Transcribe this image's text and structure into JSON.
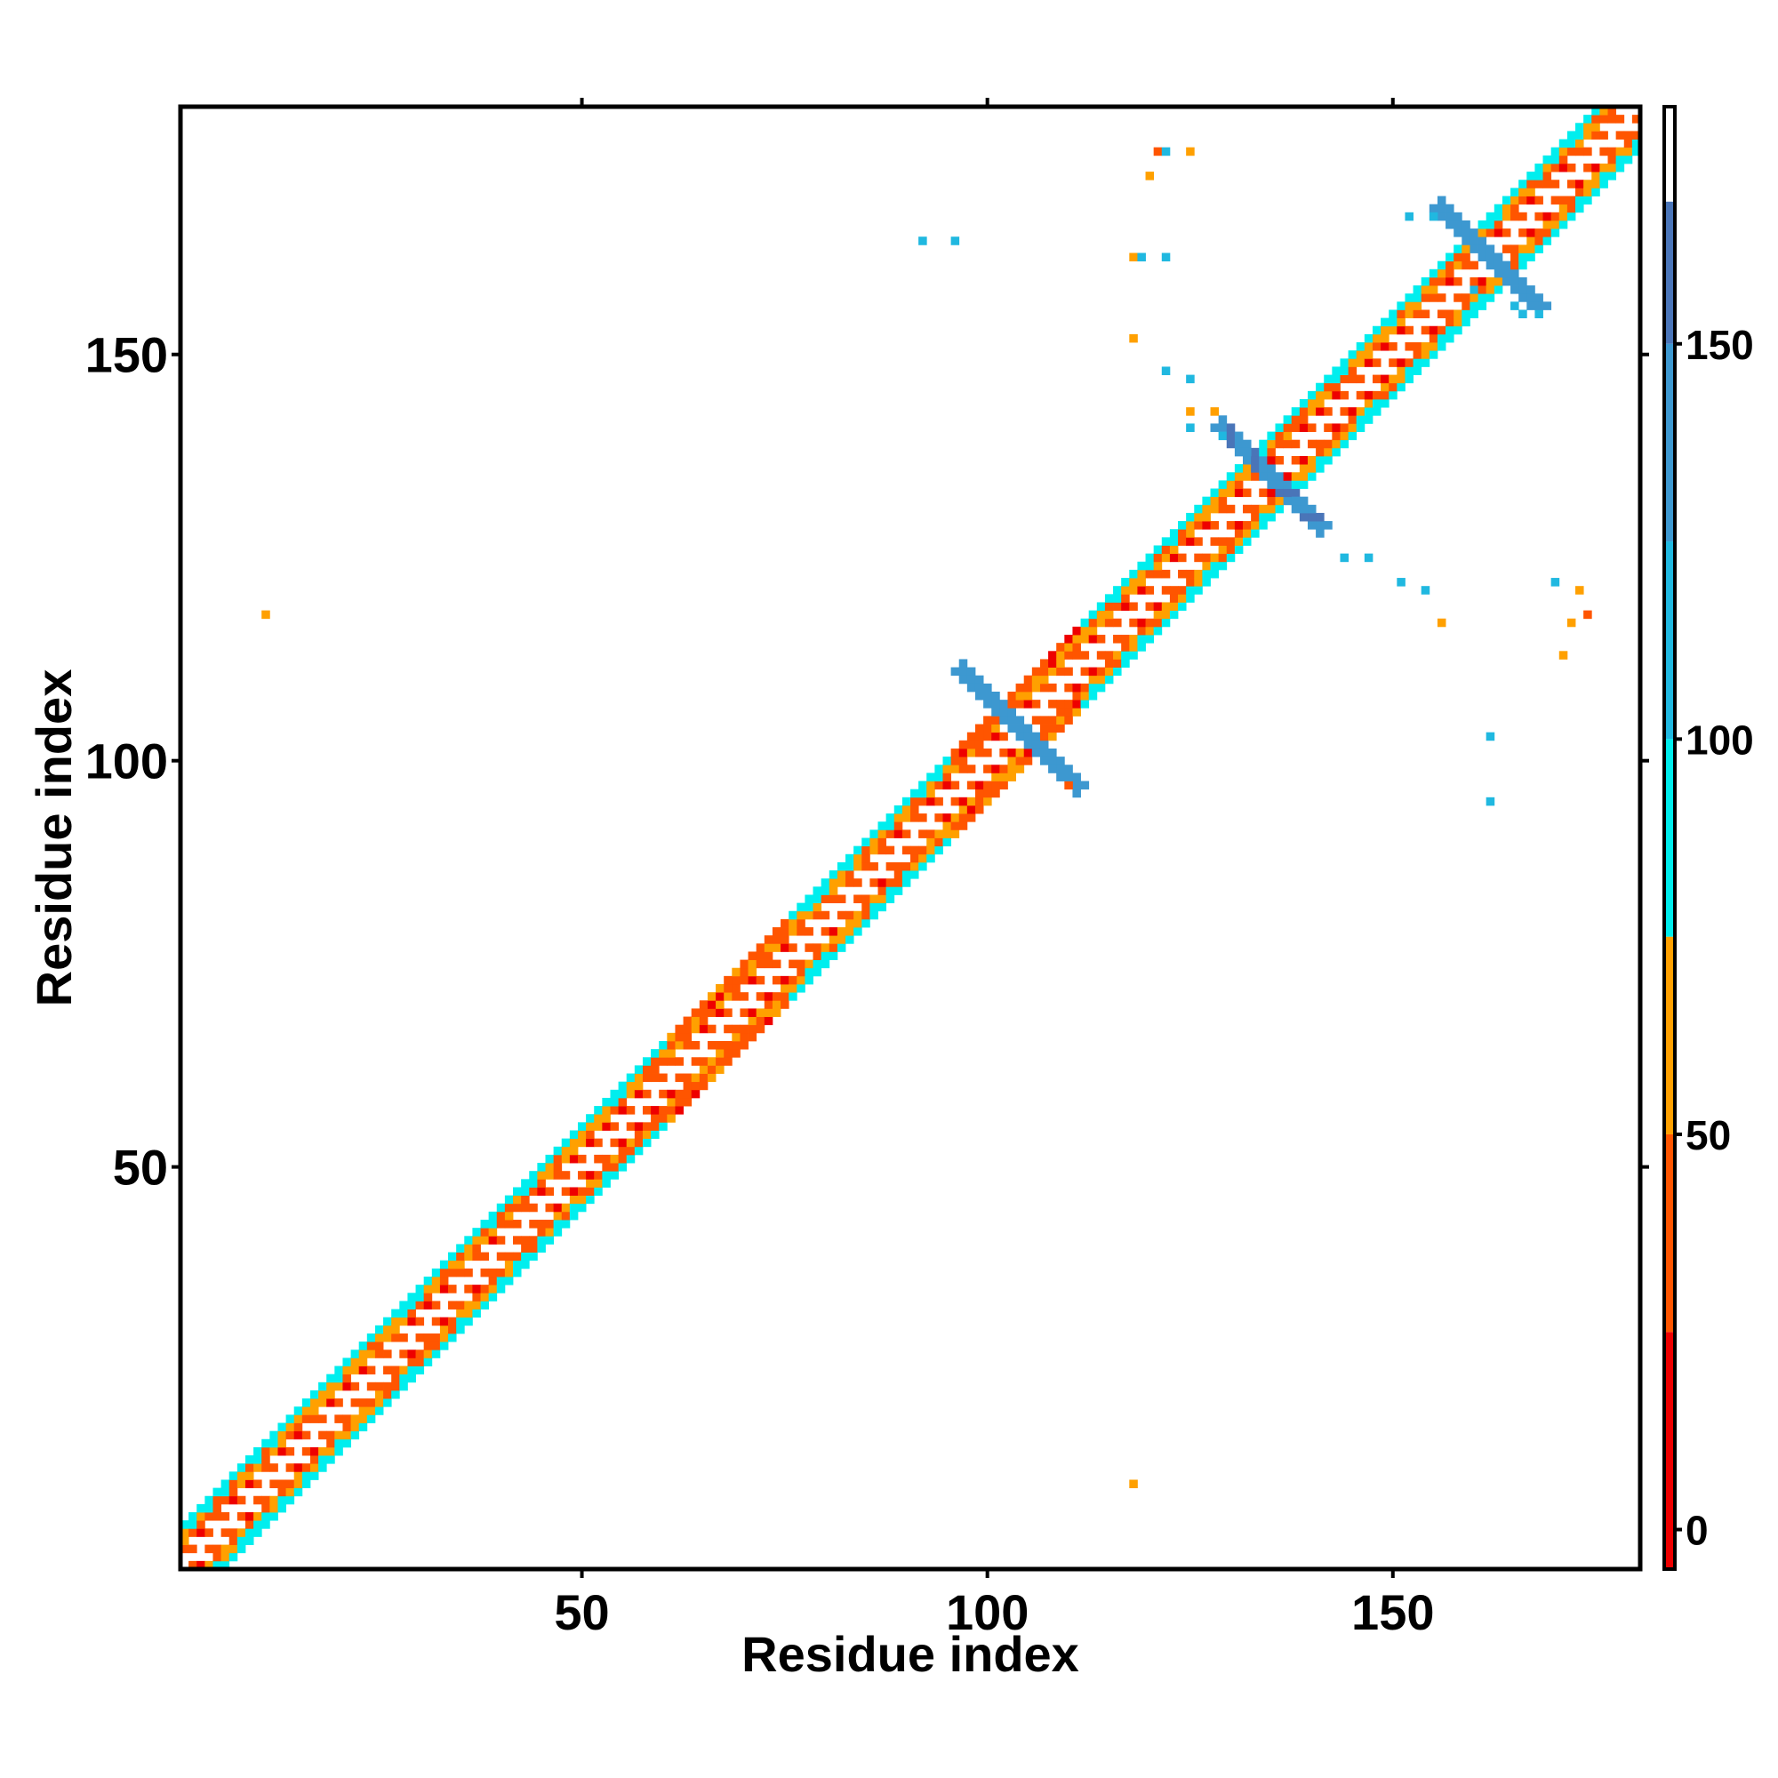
{
  "chart_data": {
    "type": "heatmap",
    "title": "",
    "xlabel": "Residue index",
    "ylabel": "Residue index",
    "xlim": [
      1,
      180
    ],
    "ylim": [
      1,
      180
    ],
    "x_ticks": [
      50,
      100,
      150
    ],
    "y_ticks": [
      50,
      100,
      150
    ],
    "grid": false,
    "diagonal_band": {
      "halfwidth": 5,
      "from": 1,
      "to": 180
    },
    "crosses": [
      {
        "center": 104,
        "extent": 7,
        "value": 125
      },
      {
        "center": 135,
        "extent": 6,
        "value": 145
      },
      {
        "center": 162,
        "extent": 6,
        "value": 125
      }
    ],
    "off_diagonal_cells": [
      [
        11,
        118,
        65
      ],
      [
        118,
        11,
        65
      ],
      [
        92,
        164,
        100
      ],
      [
        96,
        164,
        100
      ],
      [
        118,
        162,
        70
      ],
      [
        119,
        162,
        100
      ],
      [
        122,
        162,
        100
      ],
      [
        120,
        172,
        50
      ],
      [
        121,
        175,
        30
      ],
      [
        122,
        175,
        100
      ],
      [
        125,
        175,
        70
      ],
      [
        118,
        152,
        60
      ],
      [
        122,
        148,
        100
      ],
      [
        125,
        147,
        100
      ],
      [
        125,
        143,
        70
      ],
      [
        128,
        143,
        70
      ],
      [
        125,
        141,
        100
      ],
      [
        129,
        140,
        100
      ],
      [
        152,
        167,
        100
      ],
      [
        155,
        167,
        100
      ],
      [
        160,
        158,
        100
      ],
      [
        165,
        156,
        100
      ],
      [
        166,
        155,
        100
      ],
      [
        168,
        155,
        100
      ],
      [
        144,
        125,
        100
      ],
      [
        147,
        125,
        100
      ],
      [
        151,
        122,
        100
      ],
      [
        154,
        121,
        100
      ],
      [
        156,
        117,
        60
      ],
      [
        162,
        103,
        100
      ],
      [
        162,
        95,
        100
      ],
      [
        170,
        122,
        100
      ],
      [
        173,
        121,
        50
      ],
      [
        172,
        117,
        70
      ],
      [
        171,
        113,
        60
      ],
      [
        174,
        118,
        30
      ],
      [
        110,
        97,
        40
      ]
    ],
    "colorbar": {
      "range": [
        -5,
        180
      ],
      "ticks": [
        0,
        50,
        100,
        150
      ],
      "bands": [
        {
          "from": -5,
          "to": 25,
          "color": "#ee0000"
        },
        {
          "from": 25,
          "to": 50,
          "color": "#ff5500"
        },
        {
          "from": 50,
          "to": 75,
          "color": "#ffa000"
        },
        {
          "from": 75,
          "to": 100,
          "color": "#00eeee"
        },
        {
          "from": 100,
          "to": 125,
          "color": "#20b8e0"
        },
        {
          "from": 125,
          "to": 150,
          "color": "#3d98d0"
        },
        {
          "from": 150,
          "to": 168,
          "color": "#4a75b8"
        },
        {
          "from": 168,
          "to": 180,
          "color": "#ffffff"
        }
      ]
    }
  }
}
